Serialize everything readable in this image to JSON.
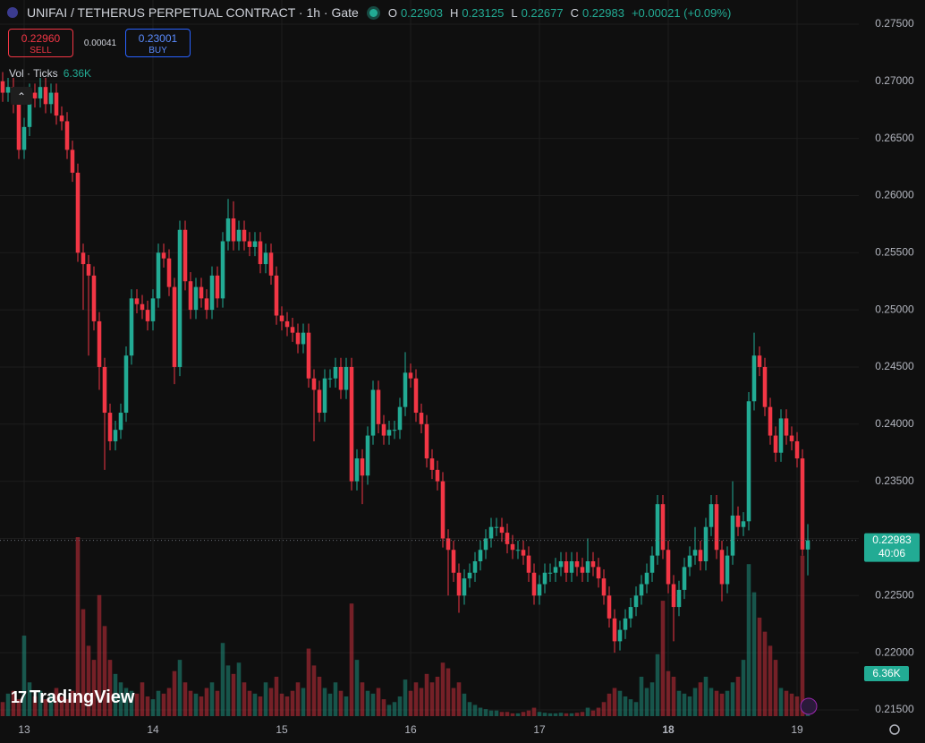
{
  "header": {
    "title": "UNIFAI / TETHERUS PERPETUAL CONTRACT · 1h · Gate",
    "o_label": "O",
    "h_label": "H",
    "l_label": "L",
    "c_label": "C",
    "change": "+0.00021 (+0.09%)",
    "sell_price": "0.22960",
    "sell_label": "SELL",
    "spread": "0.00041",
    "buy_price": "0.23001",
    "buy_label": "BUY",
    "indicator": "Vol · Ticks",
    "indicator_value": "6.36K",
    "logo": "TradingView"
  },
  "chart_data": {
    "type": "candlestick",
    "title": "UNIFAI / TETHERUS PERPETUAL CONTRACT · 1h · Gate",
    "up_color": "#22ab94",
    "down_color": "#f23645",
    "grid": true,
    "xlim": [
      -0.5,
      159.5
    ],
    "ylim": [
      0.21445,
      0.27711
    ],
    "xticks": [
      {
        "value": 4,
        "label": "13"
      },
      {
        "value": 28,
        "label": "14"
      },
      {
        "value": 52,
        "label": "15"
      },
      {
        "value": 76,
        "label": "16"
      },
      {
        "value": 100,
        "label": "17"
      },
      {
        "value": 124,
        "label": "18"
      },
      {
        "value": 148,
        "label": "19"
      }
    ],
    "yticks": [
      {
        "value": 0.215,
        "label": "0.21500"
      },
      {
        "value": 0.22,
        "label": "0.22000"
      },
      {
        "value": 0.225,
        "label": "0.22500"
      },
      {
        "value": 0.23,
        "label": "0.23000"
      },
      {
        "value": 0.235,
        "label": "0.23500"
      },
      {
        "value": 0.24,
        "label": "0.24000"
      },
      {
        "value": 0.245,
        "label": "0.24500"
      },
      {
        "value": 0.25,
        "label": "0.25000"
      },
      {
        "value": 0.255,
        "label": "0.25500"
      },
      {
        "value": 0.26,
        "label": "0.26000"
      },
      {
        "value": 0.265,
        "label": "0.26500"
      },
      {
        "value": 0.27,
        "label": "0.27000"
      },
      {
        "value": 0.275,
        "label": "0.27500"
      }
    ],
    "countdown": "40:06",
    "volume_label": "6.36K",
    "open": [
      0.27,
      0.269,
      0.2695,
      0.268,
      0.264,
      0.266,
      0.269,
      0.2685,
      0.2695,
      0.268,
      0.269,
      0.267,
      0.2665,
      0.264,
      0.262,
      0.255,
      0.254,
      0.253,
      0.249,
      0.245,
      0.241,
      0.2385,
      0.2395,
      0.241,
      0.246,
      0.251,
      0.2505,
      0.25,
      0.249,
      0.251,
      0.255,
      0.2545,
      0.252,
      0.245,
      0.257,
      0.2525,
      0.25,
      0.252,
      0.251,
      0.25,
      0.253,
      0.251,
      0.256,
      0.258,
      0.256,
      0.257,
      0.256,
      0.2555,
      0.256,
      0.254,
      0.255,
      0.253,
      0.2495,
      0.249,
      0.2485,
      0.248,
      0.247,
      0.248,
      0.244,
      0.243,
      0.241,
      0.244,
      0.244,
      0.245,
      0.243,
      0.245,
      0.235,
      0.237,
      0.2355,
      0.239,
      0.243,
      0.24,
      0.239,
      0.2395,
      0.2395,
      0.2415,
      0.2445,
      0.244,
      0.241,
      0.24,
      0.237,
      0.236,
      0.235,
      0.23,
      0.229,
      0.227,
      0.225,
      0.2265,
      0.227,
      0.228,
      0.229,
      0.23,
      0.231,
      0.231,
      0.2305,
      0.2295,
      0.229,
      0.229,
      0.2285,
      0.227,
      0.225,
      0.226,
      0.227,
      0.227,
      0.2275,
      0.228,
      0.227,
      0.228,
      0.2275,
      0.227,
      0.228,
      0.2275,
      0.2265,
      0.225,
      0.223,
      0.221,
      0.222,
      0.223,
      0.224,
      0.225,
      0.226,
      0.227,
      0.2285,
      0.233,
      0.229,
      0.226,
      0.224,
      0.2255,
      0.2275,
      0.2285,
      0.229,
      0.228,
      0.231,
      0.233,
      0.229,
      0.226,
      0.2285,
      0.232,
      0.231,
      0.2315,
      0.242,
      0.246,
      0.245,
      0.2415,
      0.239,
      0.2375,
      0.2405,
      0.239,
      0.2385,
      0.237,
      0.22903
    ],
    "high": [
      0.2708,
      0.2703,
      0.2703,
      0.2688,
      0.2668,
      0.2698,
      0.2698,
      0.2703,
      0.2703,
      0.2698,
      0.2698,
      0.2678,
      0.2673,
      0.2648,
      0.2628,
      0.2558,
      0.2548,
      0.2538,
      0.2498,
      0.2458,
      0.2418,
      0.2403,
      0.2418,
      0.2468,
      0.2518,
      0.2518,
      0.2513,
      0.2508,
      0.2518,
      0.2558,
      0.2558,
      0.2553,
      0.2528,
      0.2578,
      0.2578,
      0.2533,
      0.2528,
      0.2528,
      0.2518,
      0.2538,
      0.2538,
      0.2568,
      0.2597,
      0.2595,
      0.2578,
      0.2578,
      0.2568,
      0.2568,
      0.2568,
      0.2558,
      0.2558,
      0.2538,
      0.2503,
      0.2498,
      0.2493,
      0.2488,
      0.2488,
      0.2488,
      0.2448,
      0.2438,
      0.2448,
      0.2448,
      0.2458,
      0.2458,
      0.2458,
      0.2458,
      0.2378,
      0.2378,
      0.2398,
      0.2438,
      0.2438,
      0.2408,
      0.2403,
      0.2403,
      0.2423,
      0.2463,
      0.2453,
      0.2448,
      0.2418,
      0.2408,
      0.2378,
      0.2368,
      0.2358,
      0.2308,
      0.2298,
      0.2278,
      0.2273,
      0.2278,
      0.2288,
      0.2298,
      0.2308,
      0.2318,
      0.2318,
      0.2318,
      0.2313,
      0.2303,
      0.2298,
      0.2298,
      0.2293,
      0.2278,
      0.2268,
      0.2278,
      0.2278,
      0.2283,
      0.2288,
      0.2288,
      0.2288,
      0.2288,
      0.2283,
      0.23,
      0.2288,
      0.2283,
      0.2273,
      0.2258,
      0.2238,
      0.2228,
      0.2238,
      0.2248,
      0.2258,
      0.2268,
      0.2278,
      0.2293,
      0.2338,
      0.2338,
      0.2298,
      0.2268,
      0.2263,
      0.2283,
      0.2293,
      0.231,
      0.2298,
      0.2318,
      0.2338,
      0.2338,
      0.2298,
      0.2293,
      0.235,
      0.2328,
      0.2323,
      0.2428,
      0.248,
      0.2468,
      0.2458,
      0.2423,
      0.2398,
      0.2413,
      0.2413,
      0.2398,
      0.2393,
      0.2378,
      0.23125
    ],
    "low": [
      0.2682,
      0.2682,
      0.2672,
      0.2632,
      0.2632,
      0.2652,
      0.2677,
      0.2677,
      0.2672,
      0.2672,
      0.2662,
      0.2657,
      0.2632,
      0.2612,
      0.2542,
      0.25,
      0.246,
      0.2482,
      0.243,
      0.236,
      0.2377,
      0.2377,
      0.2387,
      0.2402,
      0.2452,
      0.2497,
      0.2492,
      0.2482,
      0.2482,
      0.2502,
      0.2537,
      0.2512,
      0.2435,
      0.2442,
      0.2517,
      0.2492,
      0.2492,
      0.2502,
      0.2492,
      0.2492,
      0.2502,
      0.2502,
      0.2552,
      0.2552,
      0.2552,
      0.2552,
      0.2547,
      0.2547,
      0.2532,
      0.2532,
      0.2522,
      0.2487,
      0.2482,
      0.2477,
      0.2472,
      0.2462,
      0.2462,
      0.2432,
      0.2385,
      0.2402,
      0.2402,
      0.2432,
      0.2432,
      0.2422,
      0.2422,
      0.2342,
      0.2342,
      0.233,
      0.2347,
      0.2382,
      0.2392,
      0.2382,
      0.2382,
      0.2387,
      0.2387,
      0.2407,
      0.2432,
      0.2402,
      0.2392,
      0.2362,
      0.2352,
      0.2342,
      0.2292,
      0.225,
      0.2262,
      0.2235,
      0.2242,
      0.2257,
      0.2262,
      0.2272,
      0.2282,
      0.2292,
      0.2302,
      0.2297,
      0.2287,
      0.2282,
      0.2282,
      0.2277,
      0.2262,
      0.2242,
      0.2242,
      0.2252,
      0.2262,
      0.2262,
      0.2267,
      0.2262,
      0.2262,
      0.2267,
      0.2262,
      0.2262,
      0.2267,
      0.2257,
      0.2242,
      0.2222,
      0.22,
      0.2202,
      0.2212,
      0.2222,
      0.2232,
      0.2242,
      0.2252,
      0.2262,
      0.2277,
      0.2282,
      0.2252,
      0.221,
      0.2232,
      0.2247,
      0.2267,
      0.2277,
      0.2272,
      0.2272,
      0.2302,
      0.2282,
      0.2245,
      0.2252,
      0.2277,
      0.2302,
      0.2302,
      0.2307,
      0.2412,
      0.2442,
      0.2407,
      0.2382,
      0.2367,
      0.2367,
      0.2382,
      0.2377,
      0.2362,
      0.2285,
      0.22677
    ],
    "close": [
      0.269,
      0.2695,
      0.268,
      0.264,
      0.266,
      0.269,
      0.2685,
      0.2695,
      0.268,
      0.269,
      0.267,
      0.2665,
      0.264,
      0.262,
      0.255,
      0.254,
      0.253,
      0.249,
      0.245,
      0.241,
      0.2385,
      0.2395,
      0.241,
      0.246,
      0.251,
      0.2505,
      0.25,
      0.249,
      0.251,
      0.255,
      0.2545,
      0.252,
      0.245,
      0.257,
      0.2525,
      0.25,
      0.252,
      0.251,
      0.25,
      0.253,
      0.251,
      0.256,
      0.258,
      0.256,
      0.257,
      0.256,
      0.2555,
      0.256,
      0.254,
      0.255,
      0.253,
      0.2495,
      0.249,
      0.2485,
      0.248,
      0.247,
      0.248,
      0.244,
      0.243,
      0.241,
      0.244,
      0.244,
      0.245,
      0.243,
      0.245,
      0.235,
      0.237,
      0.2355,
      0.239,
      0.243,
      0.24,
      0.239,
      0.2395,
      0.2395,
      0.2415,
      0.2445,
      0.244,
      0.241,
      0.24,
      0.237,
      0.236,
      0.235,
      0.23,
      0.229,
      0.227,
      0.225,
      0.2265,
      0.227,
      0.228,
      0.229,
      0.23,
      0.231,
      0.231,
      0.2305,
      0.2295,
      0.229,
      0.229,
      0.2285,
      0.227,
      0.225,
      0.226,
      0.227,
      0.227,
      0.2275,
      0.228,
      0.227,
      0.228,
      0.2275,
      0.227,
      0.228,
      0.2275,
      0.2265,
      0.225,
      0.223,
      0.221,
      0.222,
      0.223,
      0.224,
      0.225,
      0.226,
      0.227,
      0.2285,
      0.233,
      0.229,
      0.226,
      0.224,
      0.2255,
      0.2275,
      0.2285,
      0.229,
      0.228,
      0.231,
      0.233,
      0.229,
      0.226,
      0.2285,
      0.232,
      0.231,
      0.2315,
      0.242,
      0.246,
      0.245,
      0.2415,
      0.239,
      0.2375,
      0.2405,
      0.239,
      0.2385,
      0.237,
      0.22903,
      0.22983
    ],
    "volume": [
      5000,
      8000,
      9000,
      6000,
      28600,
      12000,
      7000,
      9000,
      6000,
      8000,
      10000,
      7000,
      6000,
      9000,
      63600,
      38000,
      25000,
      20000,
      43000,
      32000,
      20000,
      15000,
      12000,
      10000,
      9000,
      8000,
      12000,
      7000,
      6000,
      9000,
      8000,
      10000,
      16000,
      20000,
      12000,
      9000,
      8000,
      7000,
      10000,
      12000,
      9000,
      26000,
      18000,
      15000,
      19000,
      12000,
      9000,
      8000,
      7000,
      12000,
      10000,
      14000,
      8000,
      7000,
      9000,
      12000,
      10000,
      24000,
      18000,
      14000,
      10000,
      8000,
      12000,
      9000,
      7000,
      40000,
      20000,
      12000,
      9000,
      8000,
      10000,
      6000,
      4000,
      5000,
      7000,
      13000,
      9000,
      12000,
      10000,
      15000,
      12000,
      14000,
      19000,
      17000,
      10000,
      12000,
      8000,
      5000,
      4000,
      3000,
      2500,
      2000,
      2000,
      1500,
      1500,
      1000,
      1000,
      1500,
      2000,
      3000,
      1500,
      1200,
      1000,
      1000,
      1200,
      1000,
      1000,
      1200,
      1500,
      3000,
      2000,
      3000,
      5000,
      8000,
      10000,
      9000,
      7000,
      6000,
      5000,
      14000,
      10000,
      12000,
      22000,
      41000,
      16000,
      14000,
      9000,
      8000,
      7000,
      10000,
      12000,
      14000,
      10000,
      9000,
      8000,
      9000,
      12000,
      14000,
      20000,
      54000,
      44000,
      35000,
      30000,
      25000,
      20000,
      10000,
      9000,
      8000,
      7000,
      57000,
      6360
    ]
  }
}
